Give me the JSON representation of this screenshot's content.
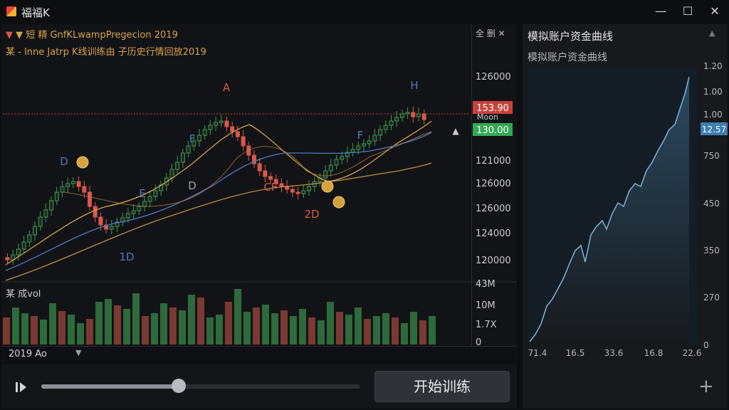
{
  "window": {
    "title": "福福K",
    "icon": "app-logo-icon"
  },
  "window_controls": {
    "minimize": "—",
    "maximize": "☐",
    "close": "✕"
  },
  "chart": {
    "legend_line1": "▼ 短 精  GnfKLwampPregecion 2019",
    "legend_line2": "某 - Inne Jatrp K线训练由 子历史行情回放2019",
    "top_right": "全 删  ✕",
    "volume_label": "某 成vol",
    "price_axis": [
      "126000",
      "121000",
      "126000",
      "126000",
      "124000",
      "120000"
    ],
    "price_tags": {
      "upper": "153.90",
      "upper_sub": "Moon",
      "lower": "130.00"
    },
    "volume_axis": [
      "43M",
      "10M",
      "1.7X",
      "0"
    ],
    "annotations": [
      "A",
      "H",
      "D",
      "F",
      "E",
      "D",
      "CF",
      "2D",
      "1D",
      "F"
    ],
    "bottom_label": "2019 Ao",
    "colors": {
      "up": "#3e9b55",
      "down": "#d9584a",
      "ma_orange": "#d8a44a",
      "ma_blue": "#4d78c4",
      "price_line": "#c0403a",
      "tag_green": "#34a853"
    }
  },
  "controls": {
    "start_button": "开始训练",
    "progress": 0.43,
    "play_icon": "play-pause-icon"
  },
  "side_panel": {
    "title": "模拟账户资金曲线",
    "subtitle": "模拟账户资金曲线",
    "y_axis": [
      "1.20",
      "1.00",
      "1.00",
      "750",
      "450",
      "350",
      "270",
      "0"
    ],
    "current_value": "12.57",
    "x_axis": [
      "71.4",
      "16.5",
      "33.6",
      "16.8",
      "22.6"
    ],
    "plus": "+"
  }
}
